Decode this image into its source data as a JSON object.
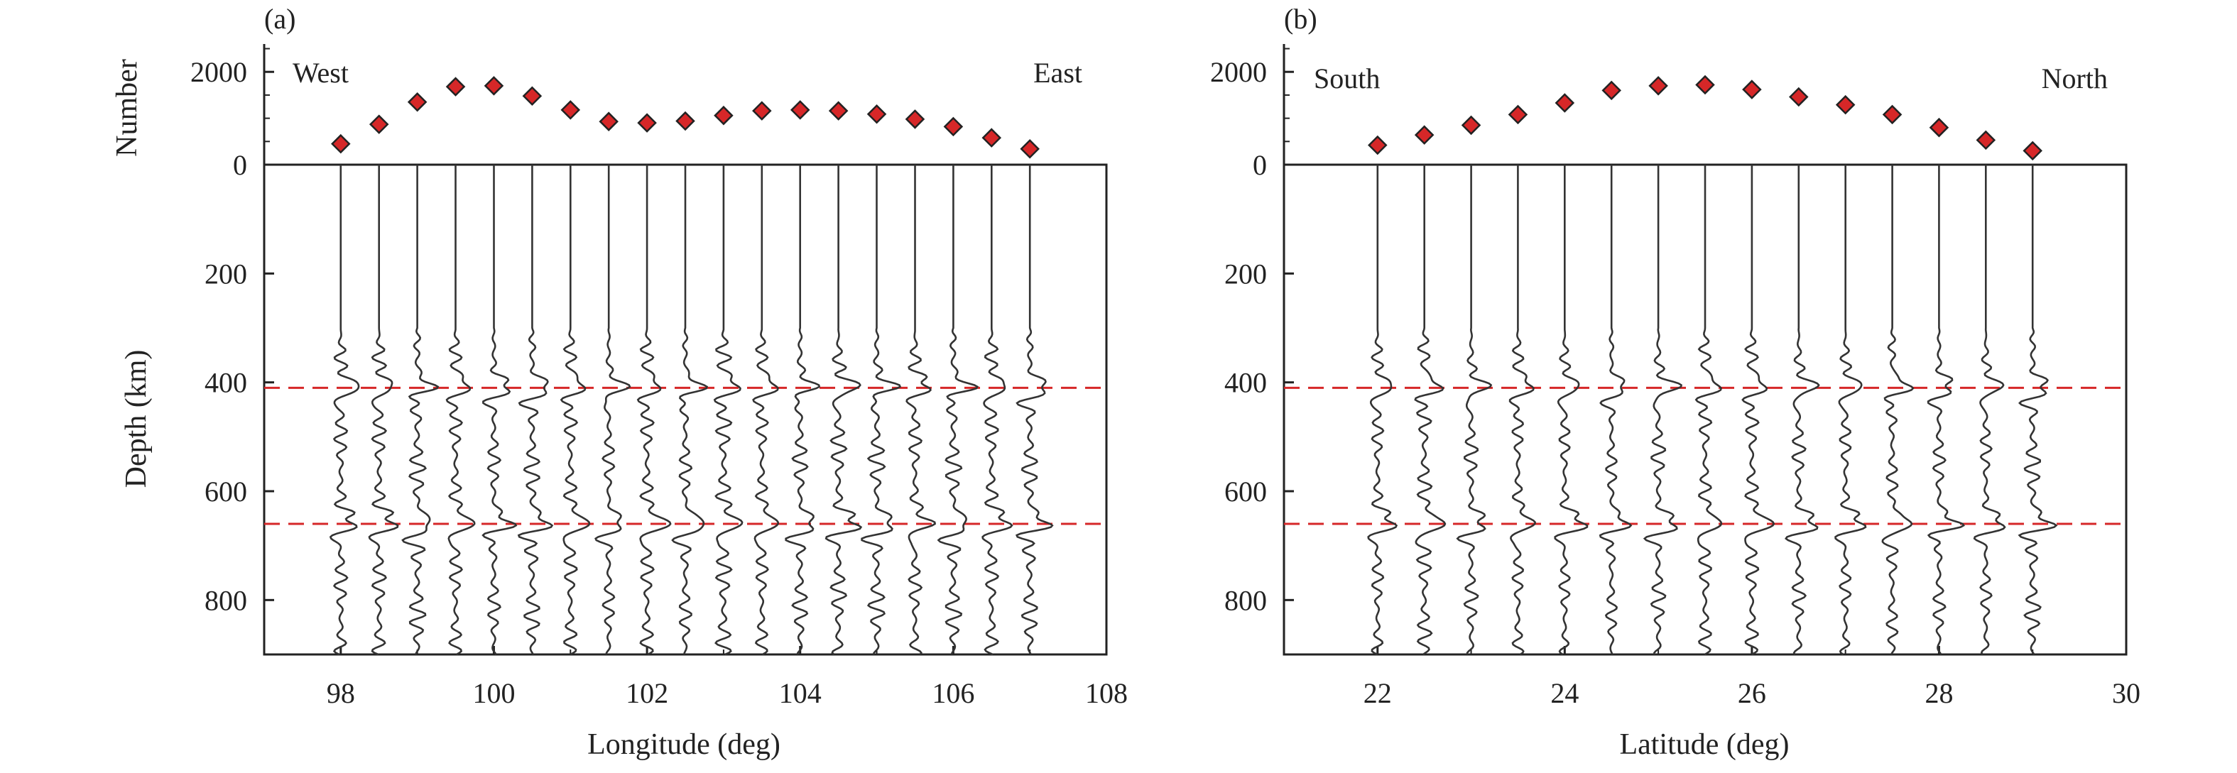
{
  "chart_data": [
    {
      "type": "scatter+trace",
      "panel_label": "(a)",
      "top_ylabel": "Number",
      "top_yticks": [
        0,
        2000
      ],
      "top_ylim": [
        0,
        2600
      ],
      "xlabel": "Longitude (deg)",
      "ylabel": "Depth (km)",
      "xlim": [
        97,
        108
      ],
      "xticks": [
        98,
        100,
        102,
        104,
        106,
        108
      ],
      "ylim_depth": [
        0,
        900
      ],
      "yticks": [
        200,
        400,
        600,
        800
      ],
      "left_direction": "West",
      "right_direction": "East",
      "discontinuity_depths": [
        410,
        660
      ],
      "trace_positions": [
        98,
        98.5,
        99,
        99.5,
        100,
        100.5,
        101,
        101.5,
        102,
        102.5,
        103,
        103.5,
        104,
        104.5,
        105,
        105.5,
        106,
        106.5,
        107
      ],
      "counts": [
        450,
        870,
        1350,
        1680,
        1700,
        1480,
        1180,
        930,
        900,
        940,
        1060,
        1160,
        1180,
        1160,
        1090,
        980,
        820,
        580,
        340
      ]
    },
    {
      "type": "scatter+trace",
      "panel_label": "(b)",
      "top_ylabel": "",
      "top_yticks": [
        0,
        2000
      ],
      "top_ylim": [
        0,
        2600
      ],
      "xlabel": "Latitude (deg)",
      "ylabel": "",
      "xlim": [
        21,
        30
      ],
      "xticks": [
        22,
        24,
        26,
        28,
        30
      ],
      "ylim_depth": [
        0,
        900
      ],
      "yticks": [
        200,
        400,
        600,
        800
      ],
      "left_direction": "South",
      "right_direction": "North",
      "discontinuity_depths": [
        410,
        660
      ],
      "trace_positions": [
        22,
        22.5,
        23,
        23.5,
        24,
        24.5,
        25,
        25.5,
        26,
        26.5,
        27,
        27.5,
        28,
        28.5,
        29
      ],
      "counts": [
        420,
        640,
        850,
        1080,
        1330,
        1600,
        1700,
        1720,
        1620,
        1460,
        1290,
        1080,
        800,
        530,
        300
      ]
    }
  ],
  "colors": {
    "marker": "#d62728",
    "dashed": "#d62728",
    "trace": "#333333",
    "axis": "#222222"
  }
}
